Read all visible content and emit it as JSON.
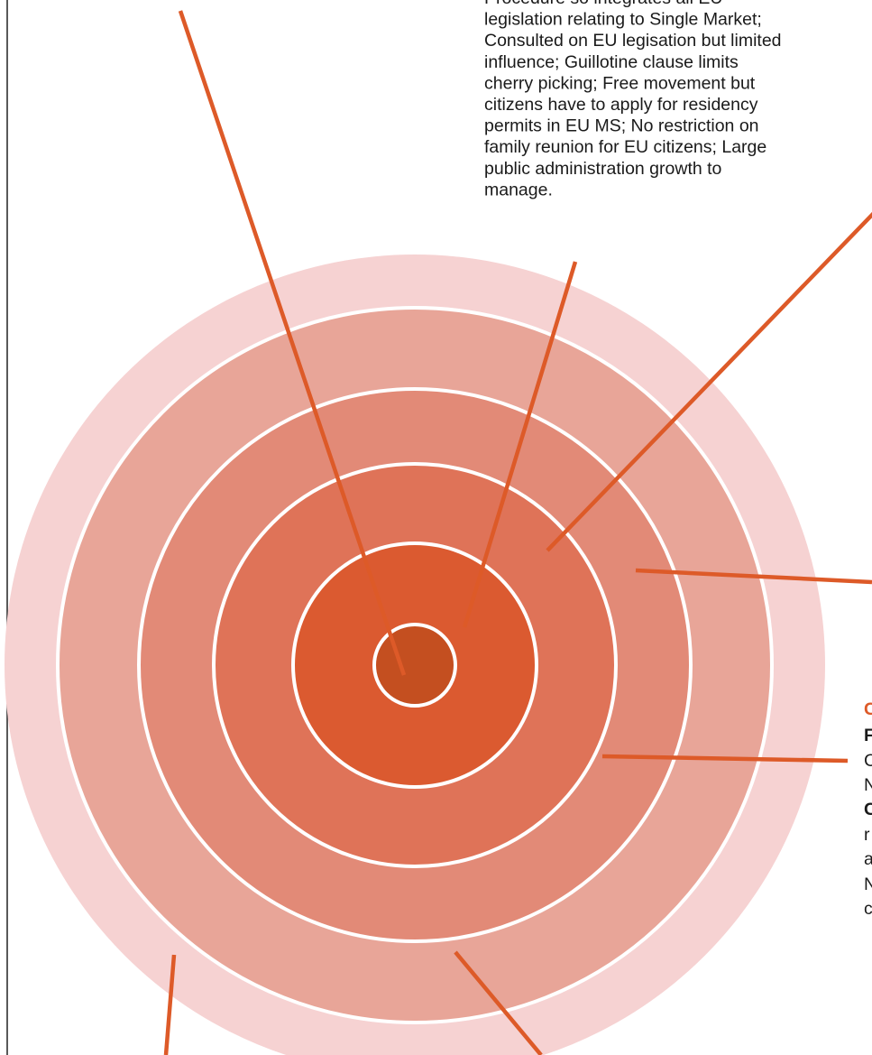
{
  "top_text": {
    "lines": [
      "Procedure so integrates all EU",
      "legislation relating to Single Market;",
      "Consulted on EU legisation but limited",
      "influence; Guillotine clause limits",
      "cherry picking; Free movement but",
      "citizens have to apply for residency",
      "permits in EU MS; No restriction on",
      "family reunion for EU citizens; Large",
      "public administration growth to",
      "manage."
    ]
  },
  "right_text": {
    "lines": [
      "C",
      "F",
      "C",
      "N",
      "C",
      "r",
      "a",
      "N",
      "c"
    ]
  }
}
